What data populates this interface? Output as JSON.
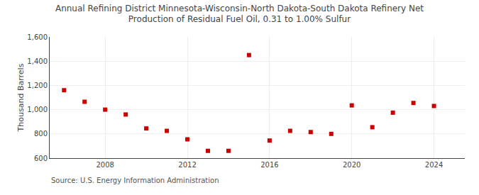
{
  "chart_data": {
    "type": "scatter",
    "title": "Annual Refining District Minnesota-Wisconsin-North Dakota-South Dakota Refinery Net\nProduction of Residual Fuel Oil, 0.31 to 1.00% Sulfur",
    "ylabel": "Thousand Barrels",
    "annotations": [
      "Source: U.S. Energy Information Administration"
    ],
    "x": [
      2006,
      2007,
      2008,
      2009,
      2010,
      2011,
      2012,
      2013,
      2014,
      2015,
      2016,
      2017,
      2018,
      2019,
      2020,
      2021,
      2022,
      2023,
      2024
    ],
    "values": [
      1160,
      1065,
      1000,
      960,
      845,
      825,
      755,
      660,
      660,
      1450,
      745,
      825,
      815,
      800,
      1035,
      855,
      975,
      1055,
      1030
    ],
    "color": "#cc0000",
    "marker": "square",
    "xlim": [
      2005.3,
      2025.5
    ],
    "xticks": [
      2008,
      2012,
      2016,
      2020,
      2024
    ],
    "ylim": [
      600,
      1600
    ],
    "yticks": [
      600,
      800,
      {
        "value": 1000,
        "label": "1,000"
      },
      {
        "value": 1200,
        "label": "1,200"
      },
      {
        "value": 1400,
        "label": "1,400"
      },
      {
        "value": 1600,
        "label": "1,600"
      }
    ],
    "grid": true
  }
}
